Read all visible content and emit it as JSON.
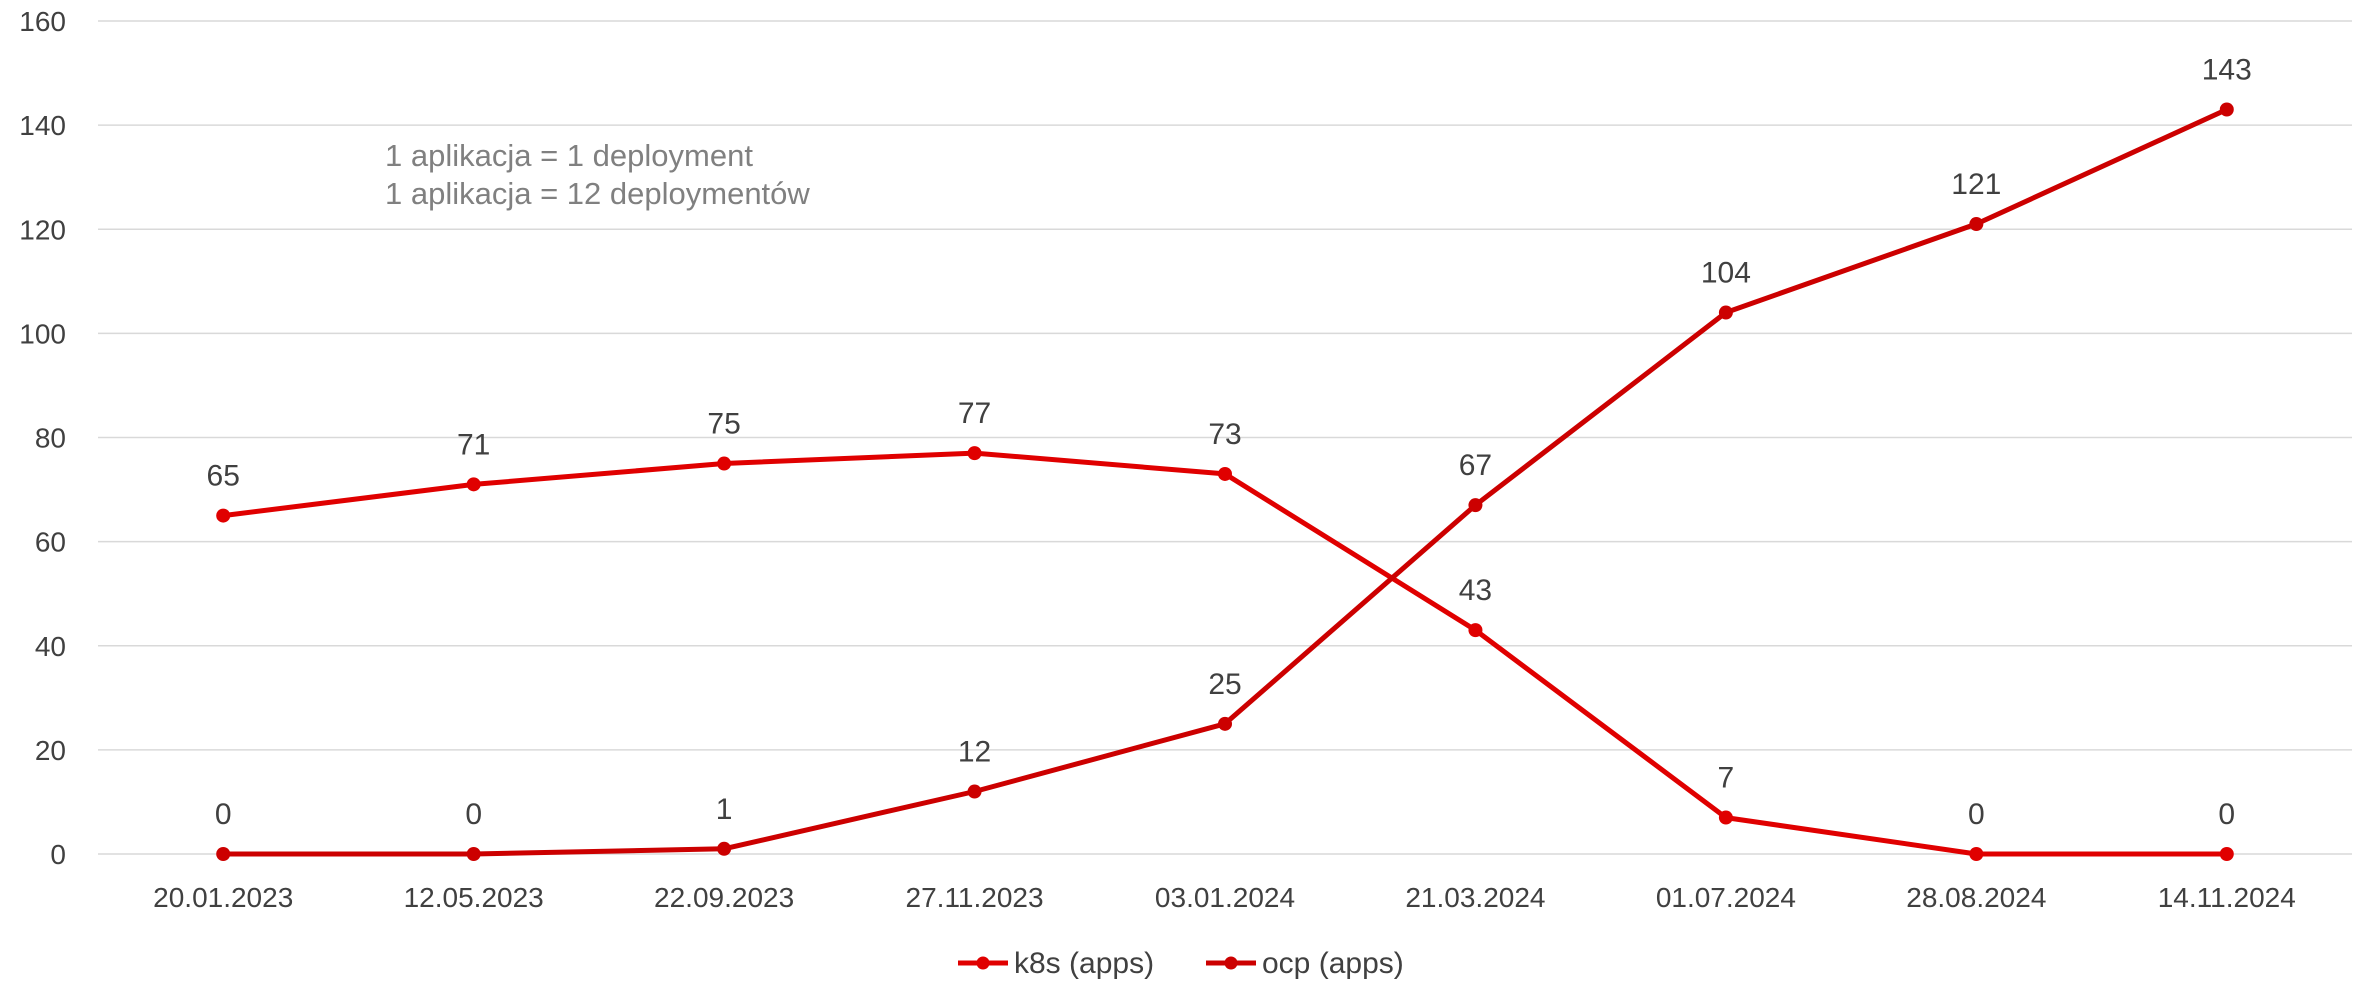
{
  "chart_data": {
    "type": "line",
    "title": "",
    "xlabel": "",
    "ylabel": "",
    "ylim": [
      0,
      160
    ],
    "yticks": [
      0,
      20,
      40,
      60,
      80,
      100,
      120,
      140,
      160
    ],
    "ytick_labels": [
      "0",
      "20",
      "40",
      "60",
      "80",
      "100",
      "120",
      "140",
      "160"
    ],
    "categories": [
      "20.01.2023",
      "12.05.2023",
      "22.09.2023",
      "27.11.2023",
      "03.01.2024",
      "21.03.2024",
      "01.07.2024",
      "28.08.2024",
      "14.11.2024"
    ],
    "series": [
      {
        "name": "k8s (apps)",
        "color": "#e00000",
        "values": [
          65,
          71,
          75,
          77,
          73,
          43,
          7,
          0,
          0
        ]
      },
      {
        "name": "ocp (apps)",
        "color": "#cc0000",
        "values": [
          0,
          0,
          1,
          12,
          25,
          67,
          104,
          121,
          143
        ]
      }
    ],
    "annotations": [
      "1 aplikacja = 1 deployment",
      "1 aplikacja = 12 deploymentów"
    ],
    "grid": true,
    "legend_position": "bottom-center",
    "data_labels": true
  }
}
